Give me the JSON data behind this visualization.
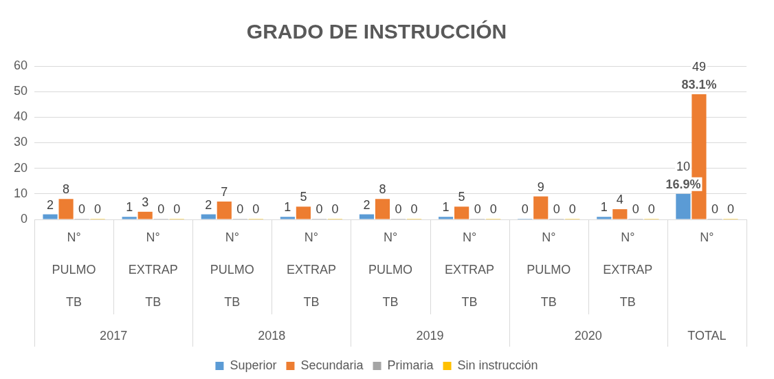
{
  "chart_data": {
    "type": "bar",
    "title": "GRADO DE INSTRUCCIÓN",
    "categories": [
      "N°\nPULMO\nTB",
      "N°\nEXTRAP\nTB",
      "N°\nPULMO\nTB",
      "N°\nEXTRAP\nTB",
      "N°\nPULMO\nTB",
      "N°\nEXTRAP\nTB",
      "N°\nPULMO\nTB",
      "N°\nEXTRAP\nTB",
      "N°"
    ],
    "series": [
      {
        "name": "Superior",
        "color": "#5b9bd5",
        "values": [
          2,
          1,
          2,
          1,
          2,
          1,
          0,
          1,
          10
        ]
      },
      {
        "name": "Secundaria",
        "color": "#ed7d31",
        "values": [
          8,
          3,
          7,
          5,
          8,
          5,
          9,
          4,
          49
        ]
      },
      {
        "name": "Primaria",
        "color": "#a5a5a5",
        "values": [
          0,
          0,
          0,
          0,
          0,
          0,
          0,
          0,
          0
        ]
      },
      {
        "name": "Sin instrucción",
        "color": "#ffc000",
        "values": [
          0,
          0,
          0,
          0,
          0,
          0,
          0,
          0,
          0
        ]
      }
    ],
    "ylim": [
      0,
      60
    ],
    "yticks": [
      0,
      10,
      20,
      30,
      40,
      50,
      60
    ],
    "grid": "y",
    "legend": "bottom",
    "data_labels": true,
    "annotations": [
      "2017",
      "2018",
      "2019",
      "2020",
      "TOTAL",
      {
        "text": "16.9%",
        "x": "N°",
        "y": 10
      },
      {
        "text": "83.1%",
        "x": "N°",
        "y": 49
      }
    ]
  }
}
